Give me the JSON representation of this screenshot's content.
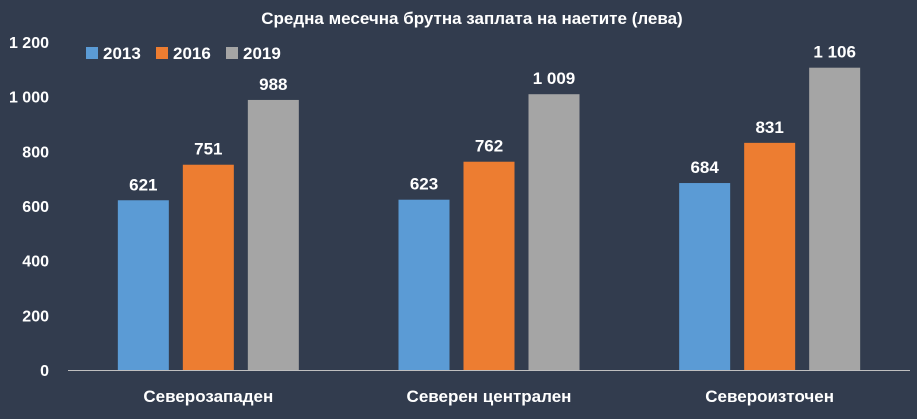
{
  "chart_data": {
    "type": "bar",
    "title": "Средна месечна брутна заплата на наетите (лева)",
    "categories": [
      "Северозападен",
      "Северен централен",
      "Североизточен"
    ],
    "series": [
      {
        "name": "2013",
        "color": "#5b9bd5",
        "values": [
          621,
          623,
          684
        ],
        "labels": [
          "621",
          "623",
          "684"
        ]
      },
      {
        "name": "2016",
        "color": "#ed7d31",
        "values": [
          751,
          762,
          831
        ],
        "labels": [
          "751",
          "762",
          "831"
        ]
      },
      {
        "name": "2019",
        "color": "#a5a5a5",
        "values": [
          988,
          1009,
          1106
        ],
        "labels": [
          "988",
          "1 009",
          "1 106"
        ]
      }
    ],
    "yticks": [
      {
        "value": 0,
        "label": "0"
      },
      {
        "value": 200,
        "label": "200"
      },
      {
        "value": 400,
        "label": "400"
      },
      {
        "value": 600,
        "label": "600"
      },
      {
        "value": 800,
        "label": "800"
      },
      {
        "value": 1000,
        "label": "1 000"
      },
      {
        "value": 1200,
        "label": "1 200"
      }
    ],
    "ylim": [
      0,
      1200
    ],
    "grid": false,
    "legend": "top-left",
    "background": "#323c4e",
    "axis_color": "#bfbfbf",
    "text_color": "#ffffff"
  }
}
